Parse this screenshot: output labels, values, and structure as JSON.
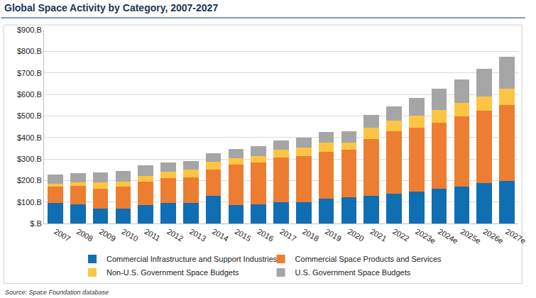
{
  "chart_data": {
    "type": "bar",
    "title": "Global Space Activity by Category, 2007-2027",
    "source": "Source: Space Foundation database",
    "stacked": true,
    "grid": true,
    "legend": "bottom",
    "categories": [
      "2007",
      "2008",
      "2009",
      "2010",
      "2011",
      "2012",
      "2013",
      "2014",
      "2015",
      "2016",
      "2017",
      "2018",
      "2019",
      "2020",
      "2021",
      "2022",
      "2023e",
      "2024e",
      "2025e",
      "2026e",
      "2027e"
    ],
    "series": [
      {
        "name": "Commercial Infrastructure and Support Industries",
        "color": "#106eb3",
        "values": [
          95,
          88,
          68,
          68,
          86,
          95,
          95,
          127,
          86,
          90,
          98,
          98,
          117,
          122,
          128,
          140,
          148,
          162,
          172,
          187,
          198
        ]
      },
      {
        "name": "Commercial Space Products and Services",
        "color": "#ed7d31",
        "values": [
          75,
          87,
          95,
          105,
          110,
          115,
          118,
          122,
          188,
          195,
          208,
          215,
          215,
          220,
          265,
          288,
          297,
          305,
          325,
          337,
          352
        ]
      },
      {
        "name": "Non-U.S. Government Space Budgets",
        "color": "#fdc543",
        "values": [
          15,
          15,
          28,
          22,
          25,
          30,
          37,
          37,
          28,
          28,
          38,
          40,
          45,
          35,
          52,
          50,
          55,
          60,
          62,
          65,
          75
        ]
      },
      {
        "name": "U.S. Government Space Budgets",
        "color": "#a5a5a5",
        "values": [
          42,
          45,
          45,
          50,
          50,
          45,
          40,
          40,
          43,
          45,
          41,
          45,
          47,
          50,
          60,
          67,
          82,
          98,
          110,
          130,
          150
        ]
      }
    ],
    "ylim": [
      0,
      900
    ],
    "yticks": [
      {
        "value": 0,
        "label": "$.B"
      },
      {
        "value": 100,
        "label": "$100.B"
      },
      {
        "value": 200,
        "label": "$200.B"
      },
      {
        "value": 300,
        "label": "$300.B"
      },
      {
        "value": 400,
        "label": "$400.B"
      },
      {
        "value": 500,
        "label": "$500.B"
      },
      {
        "value": 600,
        "label": "$600.B"
      },
      {
        "value": 700,
        "label": "$700.B"
      },
      {
        "value": 800,
        "label": "$800.B"
      },
      {
        "value": 900,
        "label": "$900.B"
      }
    ]
  }
}
